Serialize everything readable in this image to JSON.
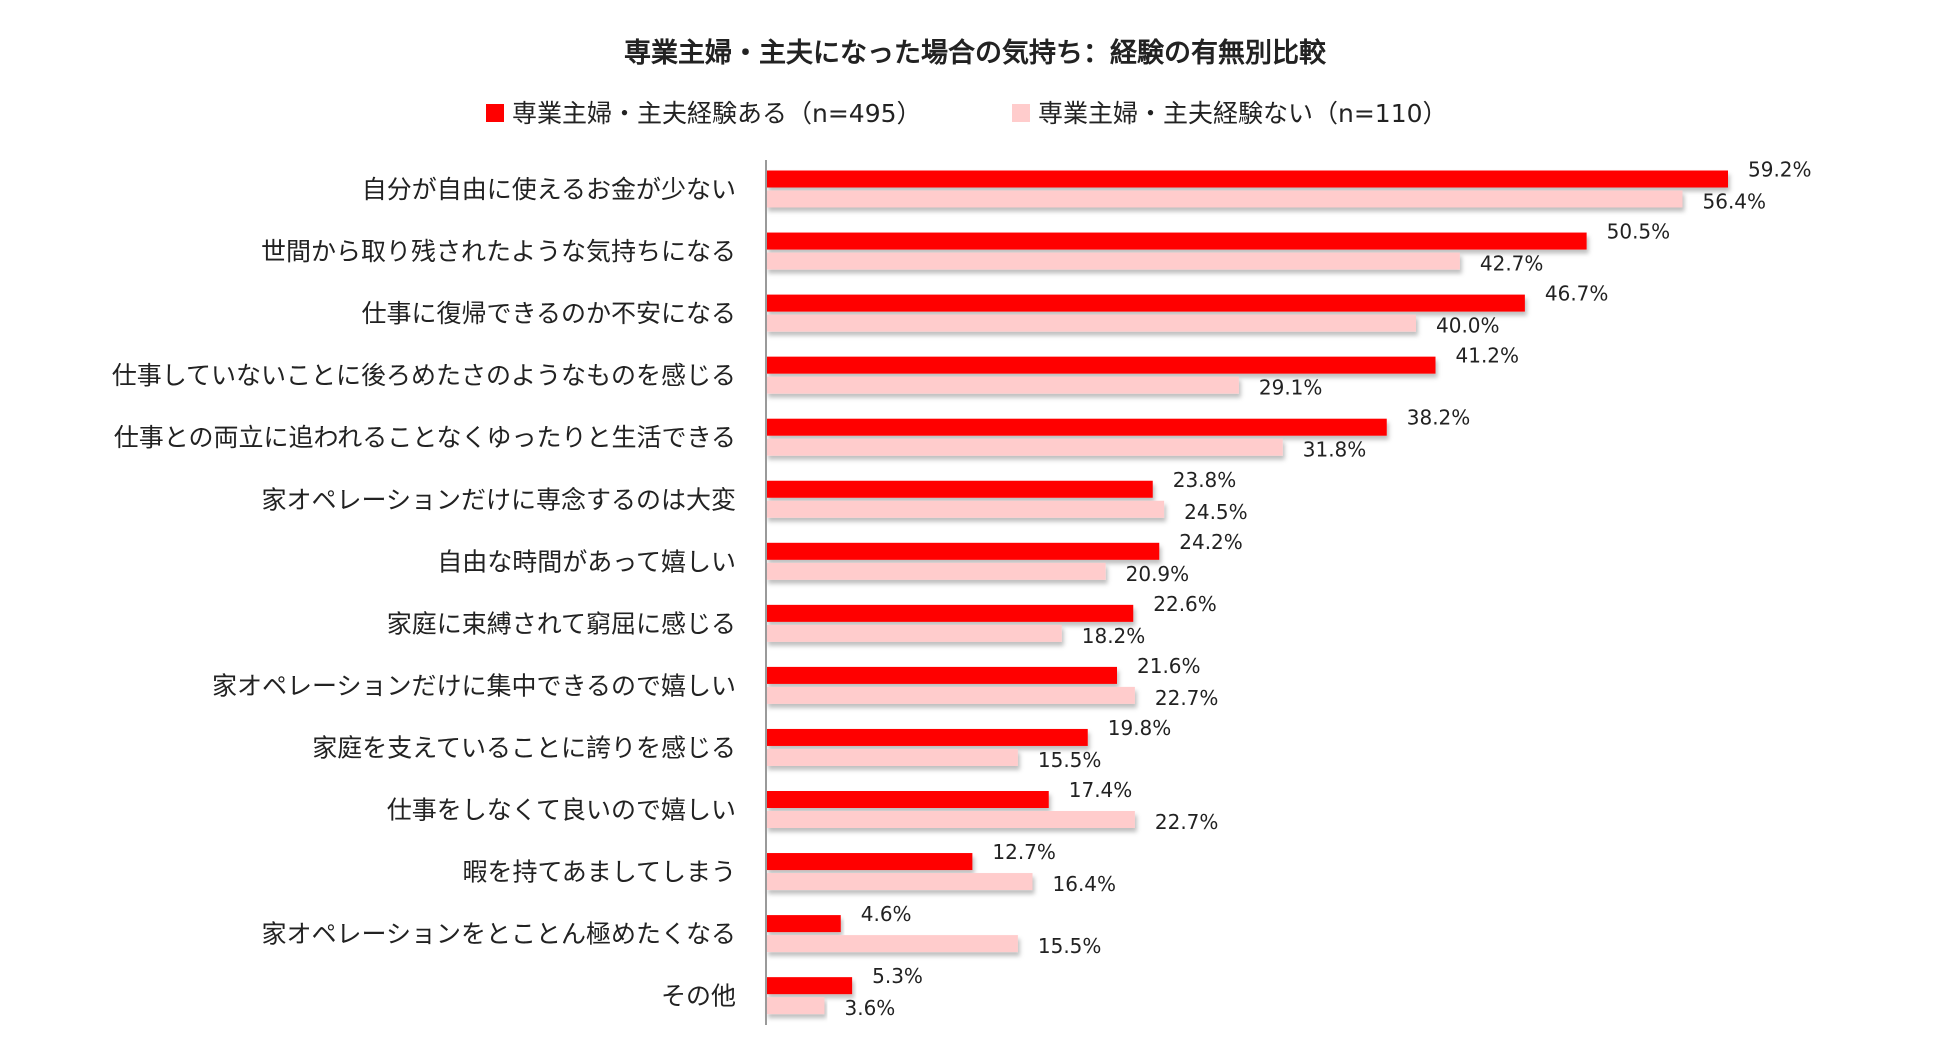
{
  "chart_data": {
    "type": "bar",
    "orientation": "horizontal",
    "title": "専業主婦・主夫になった場合の気持ち：経験の有無別比較",
    "legend_position": "top-center",
    "grid": false,
    "xlim": [
      0,
      70
    ],
    "categories": [
      "自分が自由に使えるお金が少ない",
      "世間から取り残されたような気持ちになる",
      "仕事に復帰できるのか不安になる",
      "仕事していないことに後ろめたさのようなものを感じる",
      "仕事との両立に追われることなくゆったりと生活できる",
      "家オペレーションだけに専念するのは大変",
      "自由な時間があって嬉しい",
      "家庭に束縛されて窮屈に感じる",
      "家オペレーションだけに集中できるので嬉しい",
      "家庭を支えていることに誇りを感じる",
      "仕事をしなくて良いので嬉しい",
      "暇を持てあましてしまう",
      "家オペレーションをとことん極めたくなる",
      "その他"
    ],
    "series": [
      {
        "name": "専業主婦・主夫経験ある（n=495）",
        "color": "#ff0000",
        "values": [
          59.2,
          50.5,
          46.7,
          41.2,
          38.2,
          23.8,
          24.2,
          22.6,
          21.6,
          19.8,
          17.4,
          12.7,
          4.6,
          5.3
        ],
        "labels": [
          "59.2%",
          "50.5%",
          "46.7%",
          "41.2%",
          "38.2%",
          "23.8%",
          "24.2%",
          "22.6%",
          "21.6%",
          "19.8%",
          "17.4%",
          "12.7%",
          "4.6%",
          "5.3%"
        ]
      },
      {
        "name": "専業主婦・主夫経験ない（n=110）",
        "color": "#ffcccc",
        "values": [
          56.4,
          42.7,
          40.0,
          29.1,
          31.8,
          24.5,
          20.9,
          18.2,
          22.7,
          15.5,
          22.7,
          16.4,
          15.5,
          3.6
        ],
        "labels": [
          "56.4%",
          "42.7%",
          "40.0%",
          "29.1%",
          "31.8%",
          "24.5%",
          "20.9%",
          "18.2%",
          "22.7%",
          "15.5%",
          "22.7%",
          "16.4%",
          "15.5%",
          "3.6%"
        ]
      }
    ]
  }
}
